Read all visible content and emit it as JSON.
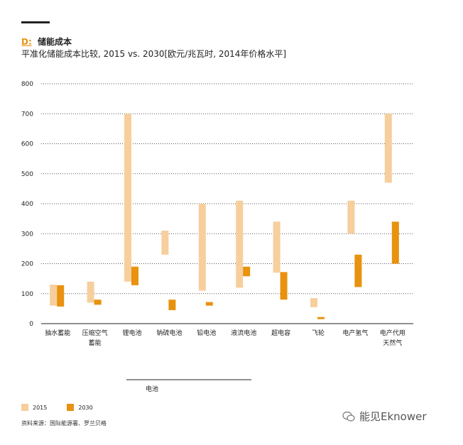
{
  "header": {
    "section_letter": "D:",
    "section_title": "储能成本",
    "subtitle": "平准化储能成本比较, 2015 vs. 2030[欧元/兆瓦时, 2014年价格水平]"
  },
  "chart_data": {
    "type": "bar",
    "subtype": "floating-range",
    "categories": [
      "抽水蓄能",
      "压缩空气蓄能",
      "锂电池",
      "钠硫电池",
      "铅电池",
      "液流电池",
      "超电容",
      "飞轮",
      "电产氢气",
      "电产代用天然气"
    ],
    "category_lines": [
      [
        "抽水蓄能"
      ],
      [
        "压缩空气",
        "蓄能"
      ],
      [
        "锂电池"
      ],
      [
        "钠硫电池"
      ],
      [
        "铅电池"
      ],
      [
        "液流电池"
      ],
      [
        "超电容"
      ],
      [
        "飞轮"
      ],
      [
        "电产氢气"
      ],
      [
        "电产代用",
        "天然气"
      ]
    ],
    "series": [
      {
        "name": "2015",
        "color": "#f6cf9c",
        "ranges": [
          [
            60,
            130
          ],
          [
            70,
            140
          ],
          [
            140,
            700
          ],
          [
            230,
            310
          ],
          [
            110,
            400
          ],
          [
            120,
            410
          ],
          [
            170,
            340
          ],
          [
            55,
            85
          ],
          [
            300,
            410
          ],
          [
            470,
            700
          ]
        ]
      },
      {
        "name": "2030",
        "color": "#e8920f",
        "ranges": [
          [
            57,
            128
          ],
          [
            63,
            80
          ],
          [
            128,
            190
          ],
          [
            45,
            80
          ],
          [
            60,
            72
          ],
          [
            158,
            190
          ],
          [
            80,
            172
          ],
          [
            15,
            22
          ],
          [
            122,
            230
          ],
          [
            200,
            340
          ]
        ]
      }
    ],
    "ylim": [
      0,
      800
    ],
    "yticks": [
      0,
      100,
      200,
      300,
      400,
      500,
      600,
      700,
      800
    ],
    "grid": true,
    "group_label": "电池",
    "legend_position": "bottom-left"
  },
  "footer": {
    "source": "资料来源：国际能源署、罗兰贝格",
    "watermark": "能见Eknower"
  }
}
